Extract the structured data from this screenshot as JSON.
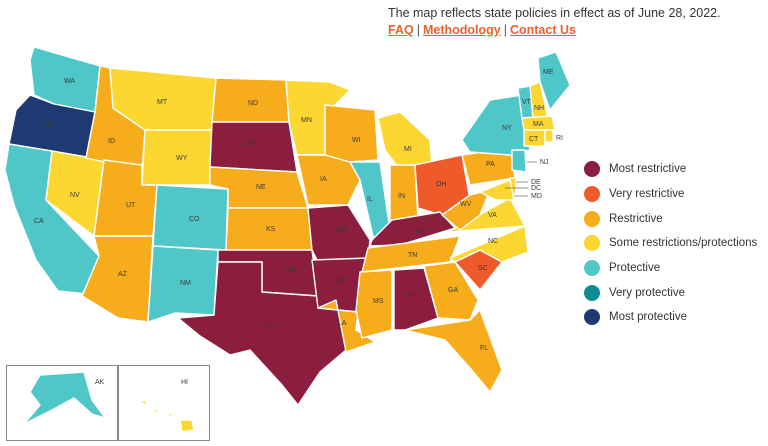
{
  "header": {
    "note": "The map reflects state policies in effect as of June 28, 2022.",
    "links": [
      "FAQ",
      "Methodology",
      "Contact Us"
    ],
    "separator": "|"
  },
  "colors": {
    "most_restrictive": "#8b1d3f",
    "very_restrictive": "#ee5a2a",
    "restrictive": "#f7ac1c",
    "some": "#fcd732",
    "protective": "#4fc7c8",
    "very_protective": "#0d8c94",
    "most_protective": "#1f3a73",
    "link": "#e8632b"
  },
  "legend": [
    {
      "label": "Most restrictive",
      "category": "most_restrictive"
    },
    {
      "label": "Very restrictive",
      "category": "very_restrictive"
    },
    {
      "label": "Restrictive",
      "category": "restrictive"
    },
    {
      "label": "Some restrictions/protections",
      "category": "some"
    },
    {
      "label": "Protective",
      "category": "protective"
    },
    {
      "label": "Very protective",
      "category": "very_protective"
    },
    {
      "label": "Most protective",
      "category": "most_protective"
    }
  ],
  "states": {
    "WA": "protective",
    "OR": "most_protective",
    "CA": "protective",
    "NV": "some",
    "ID": "restrictive",
    "MT": "some",
    "WY": "some",
    "UT": "restrictive",
    "AZ": "restrictive",
    "CO": "protective",
    "NM": "protective",
    "ND": "restrictive",
    "SD": "most_restrictive",
    "NE": "restrictive",
    "KS": "restrictive",
    "OK": "most_restrictive",
    "TX": "most_restrictive",
    "MN": "some",
    "IA": "restrictive",
    "MO": "most_restrictive",
    "AR": "most_restrictive",
    "LA": "restrictive",
    "WI": "restrictive",
    "IL": "protective",
    "MI": "some",
    "IN": "restrictive",
    "OH": "very_restrictive",
    "KY": "most_restrictive",
    "TN": "restrictive",
    "MS": "restrictive",
    "AL": "most_restrictive",
    "GA": "restrictive",
    "FL": "restrictive",
    "SC": "very_restrictive",
    "NC": "some",
    "VA": "some",
    "WV": "restrictive",
    "PA": "restrictive",
    "NY": "protective",
    "VT": "protective",
    "NH": "some",
    "ME": "protective",
    "MA": "some",
    "CT": "some",
    "RI": "some",
    "NJ": "protective",
    "DE": "some",
    "MD": "some",
    "DC": "some",
    "AK": "protective",
    "HI": "some"
  },
  "callouts": [
    "NJ",
    "DE",
    "DC",
    "MD"
  ]
}
